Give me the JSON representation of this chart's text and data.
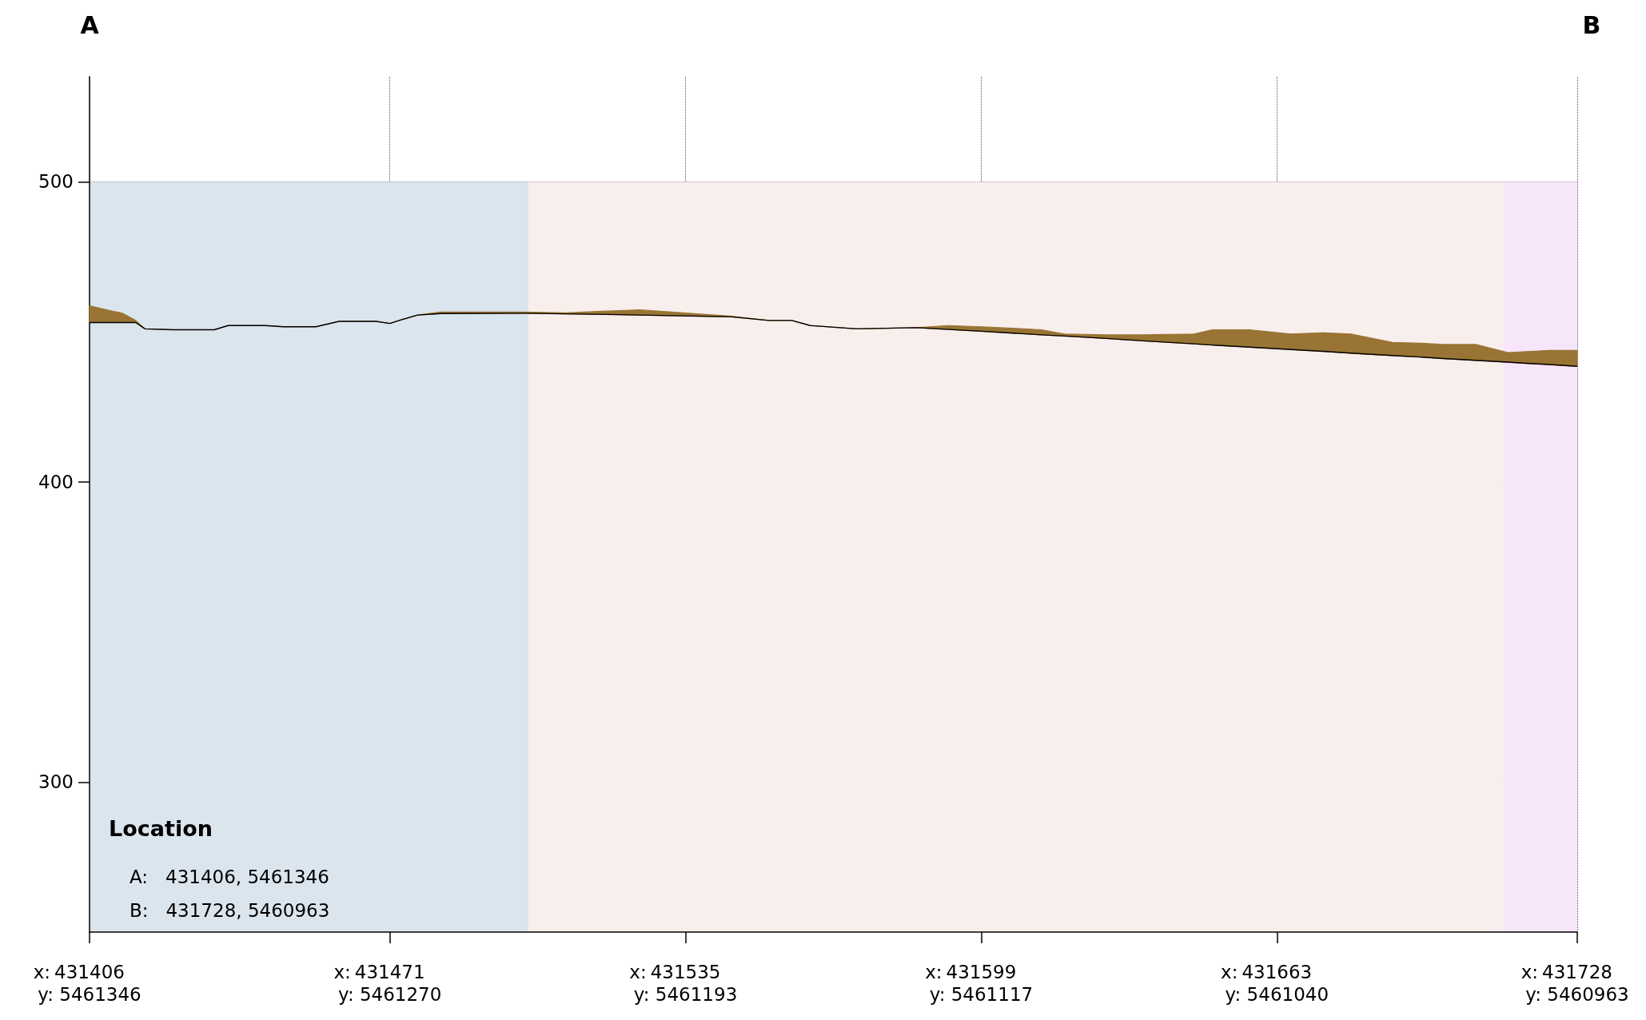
{
  "chart_data": {
    "type": "area",
    "xlabel": "x:",
    "annotations": [
      "A",
      "B",
      "Location",
      "A:   431406, 5461346",
      "B:   431728, 5460963",
      "y: 5461346",
      "y: 5461270",
      "y: 5461193",
      "y: 5461117",
      "y: 5461040",
      "y: 5460963"
    ],
    "xlim": [
      431406,
      431728
    ],
    "xticks": [
      431406,
      431471,
      431535,
      431599,
      431663,
      431728
    ],
    "ylim": [
      250,
      535
    ],
    "yticks": [
      300,
      400,
      500
    ],
    "x": [
      431406,
      431411,
      431413,
      431416,
      431418,
      431424,
      431433,
      431436,
      431444,
      431448,
      431455,
      431460,
      431468,
      431471,
      431473,
      431477,
      431482,
      431500,
      431509,
      431518,
      431525,
      431532,
      431545,
      431553,
      431558,
      431562,
      431572,
      431585,
      431592,
      431599,
      431612,
      431617,
      431626,
      431634,
      431645,
      431649,
      431657,
      431666,
      431673,
      431679,
      431688,
      431694,
      431699,
      431706,
      431713,
      431717,
      431722,
      431728
    ],
    "series": [
      {
        "type": "line",
        "color": "#000000",
        "values": [
          453.1,
          453.1,
          453.1,
          453.1,
          451.0,
          450.7,
          450.7,
          452.1,
          452.1,
          451.7,
          451.7,
          453.5,
          453.5,
          452.8,
          453.8,
          455.6,
          456.1,
          456.2,
          456.0,
          455.8,
          455.6,
          455.4,
          455.0,
          453.8,
          453.8,
          452.1,
          451.0,
          451.4,
          450.8,
          450.2,
          449.0,
          448.6,
          447.8,
          447.0,
          446.0,
          445.6,
          444.9,
          444.1,
          443.5,
          442.9,
          442.1,
          441.6,
          441.1,
          440.5,
          439.9,
          439.5,
          439.1,
          438.5
        ]
      },
      {
        "color": "#9a7434",
        "values": [
          458.7,
          456.9,
          456.3,
          453.8,
          451.0,
          450.7,
          450.7,
          452.1,
          452.1,
          451.7,
          451.7,
          453.5,
          453.5,
          452.8,
          453.8,
          455.6,
          456.6,
          456.6,
          456.3,
          456.9,
          457.3,
          456.6,
          455.2,
          453.8,
          453.8,
          452.1,
          451.0,
          451.4,
          452.1,
          451.7,
          450.7,
          449.3,
          449.0,
          449.0,
          449.3,
          450.7,
          450.7,
          449.3,
          449.7,
          449.3,
          446.5,
          446.2,
          445.8,
          445.8,
          443.1,
          443.4,
          443.8,
          443.8
        ]
      }
    ],
    "bands": [
      {
        "axis": "x",
        "from": 431406,
        "to": 431501,
        "color": "#dbe5ee"
      },
      {
        "axis": "x",
        "from": 431501,
        "to": 431712,
        "color": "#f8eeec"
      },
      {
        "axis": "x",
        "from": 431712,
        "to": 431728,
        "color": "#f7e6fa"
      }
    ],
    "grid": true
  }
}
